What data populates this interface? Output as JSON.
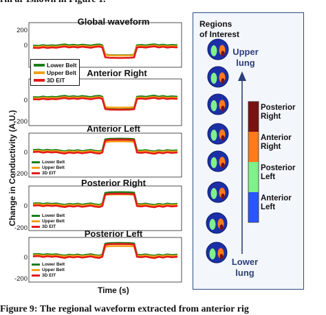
{
  "captions": {
    "top_partial": "rm ar Ishown in Figure 1.",
    "bottom_partial": "Figure 9:  The regional waveform extracted from anterior rig"
  },
  "figure": {
    "ylabel": "Change in Conductivity (A.U.)",
    "xlabel": "Time (s)",
    "roi_title_line1": "Regions",
    "roi_title_line2": "of Interest",
    "upper_label_line1": "Upper",
    "upper_label_line2": "lung",
    "lower_label_line1": "Lower",
    "lower_label_line2": "lung",
    "colorbar": [
      {
        "label_line1": "Posterior",
        "label_line2": "Right",
        "color": "#7a1212"
      },
      {
        "label_line1": "Anterior",
        "label_line2": "Right",
        "color": "#ff7a1a"
      },
      {
        "label_line1": "Posterior",
        "label_line2": "Left",
        "color": "#7ff08a"
      },
      {
        "label_line1": "Anterior",
        "label_line2": "Left",
        "color": "#2a55ff"
      }
    ]
  },
  "chart_data": [
    {
      "type": "line",
      "title": "Global waveform",
      "yticks": [
        "200",
        "0"
      ],
      "legend": {
        "entries": [
          "Lower Belt",
          "Upper Belt",
          "3D EIT"
        ],
        "placement": "bottom-left",
        "size": "large"
      },
      "series": [
        {
          "name": "Lower Belt",
          "color": "#1a7f1a"
        },
        {
          "name": "Upper Belt",
          "color": "#f2a11a"
        },
        {
          "name": "3D EIT",
          "color": "#e31a1a"
        }
      ]
    },
    {
      "type": "line",
      "title": "Anterior Right",
      "yticks": [
        "0",
        "-200"
      ],
      "legend": {
        "entries": [],
        "placement": "none"
      },
      "series": [
        {
          "name": "Lower Belt",
          "color": "#1a7f1a"
        },
        {
          "name": "Upper Belt",
          "color": "#f2a11a"
        },
        {
          "name": "3D EIT",
          "color": "#e31a1a"
        }
      ]
    },
    {
      "type": "line",
      "title": "Anterior Left",
      "yticks": [
        "0",
        "-200"
      ],
      "legend": {
        "entries": [
          "Lower Belt",
          "Upper Belt",
          "3D EIT"
        ],
        "placement": "bottom-left",
        "size": "small"
      },
      "series": [
        {
          "name": "Lower Belt",
          "color": "#1a7f1a"
        },
        {
          "name": "Upper Belt",
          "color": "#f2a11a"
        },
        {
          "name": "3D EIT",
          "color": "#e31a1a"
        }
      ]
    },
    {
      "type": "line",
      "title": "Posterior Right",
      "yticks": [
        "0",
        "-200"
      ],
      "legend": {
        "entries": [
          "Lower Belt",
          "Upper Belt",
          "3D EIT"
        ],
        "placement": "bottom-left",
        "size": "small"
      },
      "series": [
        {
          "name": "Lower Belt",
          "color": "#1a7f1a"
        },
        {
          "name": "Upper Belt",
          "color": "#f2a11a"
        },
        {
          "name": "3D EIT",
          "color": "#e31a1a"
        }
      ]
    },
    {
      "type": "line",
      "title": "Posterior Left",
      "yticks": [
        "0",
        "-200"
      ],
      "legend": {
        "entries": [
          "Lower Belt",
          "Upper Belt",
          "3D EIT"
        ],
        "placement": "bottom-left",
        "size": "small"
      },
      "series": [
        {
          "name": "Lower Belt",
          "color": "#1a7f1a"
        },
        {
          "name": "Upper Belt",
          "color": "#f2a11a"
        },
        {
          "name": "3D EIT",
          "color": "#e31a1a"
        }
      ]
    }
  ]
}
